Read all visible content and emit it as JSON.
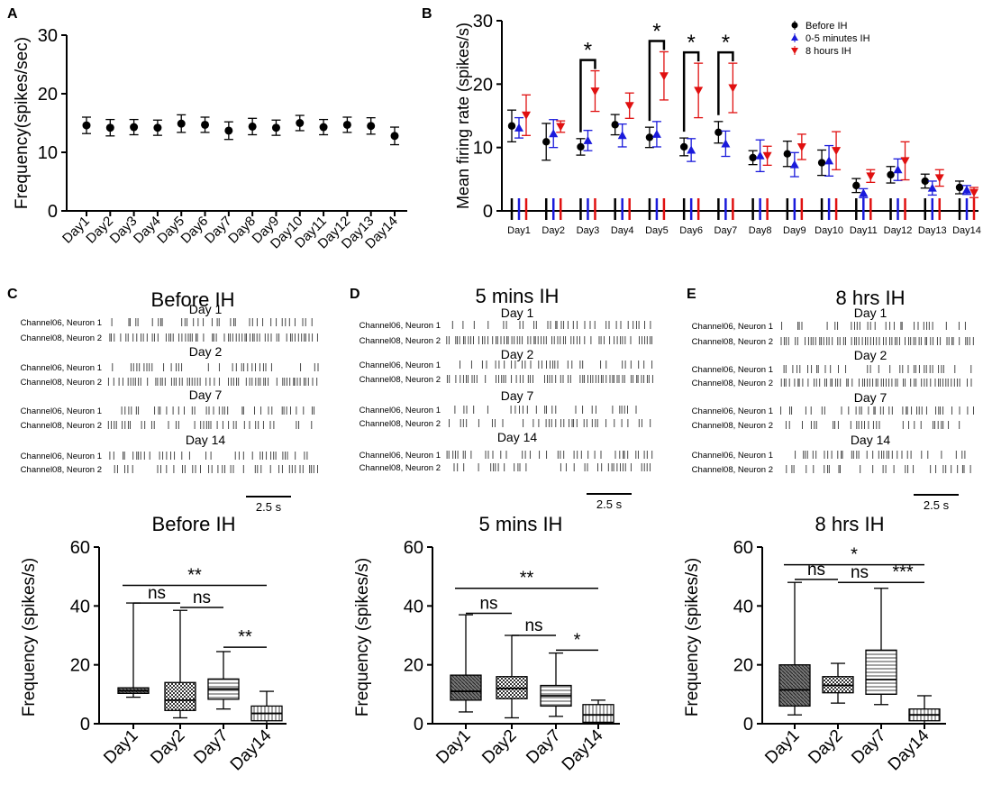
{
  "panels": {
    "A": {
      "label": "A",
      "chart_data": {
        "type": "scatter",
        "title": "",
        "xlabel": "",
        "ylabel": "Frequency(spikes/sec)",
        "ylim": [
          0,
          30
        ],
        "yticks": [
          0,
          10,
          20,
          30
        ],
        "categories": [
          "Day1",
          "Day2",
          "Day3",
          "Day4",
          "Day5",
          "Day6",
          "Day7",
          "Day8",
          "Day9",
          "Day10",
          "Day11",
          "Day12",
          "Day13",
          "Day14"
        ],
        "values": [
          14.6,
          14.2,
          14.3,
          14.2,
          14.9,
          14.7,
          13.7,
          14.4,
          14.2,
          15.0,
          14.3,
          14.7,
          14.5,
          12.8
        ],
        "errors": [
          1.4,
          1.4,
          1.3,
          1.3,
          1.5,
          1.3,
          1.5,
          1.4,
          1.3,
          1.3,
          1.3,
          1.3,
          1.4,
          1.5
        ]
      }
    },
    "B": {
      "label": "B",
      "chart_data": {
        "type": "scatter",
        "title": "",
        "xlabel": "",
        "ylabel": "Mean firing rate (spikes/s)",
        "ylim": [
          0,
          30
        ],
        "yticks": [
          0,
          10,
          20,
          30
        ],
        "categories": [
          "Day1",
          "Day2",
          "Day3",
          "Day4",
          "Day5",
          "Day6",
          "Day7",
          "Day8",
          "Day9",
          "Day10",
          "Day11",
          "Day12",
          "Day13",
          "Day14"
        ],
        "legend": [
          "Before IH",
          "0-5 minutes IH",
          "8 hours IH"
        ],
        "series": [
          {
            "name": "Before IH",
            "color": "#000000",
            "marker": "circle",
            "values": [
              13.4,
              10.9,
              10.1,
              13.6,
              11.6,
              10.1,
              12.4,
              8.4,
              9.0,
              7.6,
              4.0,
              5.7,
              4.7,
              3.7
            ],
            "errors": [
              2.5,
              2.9,
              1.3,
              1.6,
              1.6,
              1.4,
              1.7,
              1.1,
              2.0,
              2.0,
              1.1,
              1.3,
              1.1,
              1.0
            ]
          },
          {
            "name": "0-5 minutes IH",
            "color": "#1a1adb",
            "marker": "triangle-up",
            "values": [
              13.1,
              12.2,
              11.1,
              11.9,
              12.1,
              9.6,
              10.6,
              8.7,
              7.3,
              7.9,
              2.8,
              6.5,
              3.6,
              3.3
            ],
            "errors": [
              1.6,
              2.2,
              1.6,
              1.8,
              2.0,
              1.8,
              2.0,
              2.5,
              1.9,
              2.4,
              0.7,
              1.7,
              1.1,
              0.7
            ]
          },
          {
            "name": "8 hours IH",
            "color": "#e01010",
            "marker": "triangle-down",
            "values": [
              15.1,
              13.3,
              18.9,
              16.6,
              21.3,
              19.0,
              19.4,
              8.7,
              10.1,
              9.5,
              5.5,
              7.9,
              5.2,
              2.9
            ],
            "errors": [
              3.2,
              0.9,
              3.2,
              2.0,
              3.8,
              4.3,
              3.9,
              1.5,
              2.0,
              3.0,
              1.0,
              3.0,
              1.3,
              0.8
            ]
          }
        ],
        "annotations": [
          {
            "text": "*",
            "day": "Day3"
          },
          {
            "text": "*",
            "day": "Day5"
          },
          {
            "text": "*",
            "day": "Day6"
          },
          {
            "text": "*",
            "day": "Day7"
          }
        ]
      }
    },
    "rasters": [
      {
        "label": "C",
        "title": "Before IH",
        "scalebar": "2.5 s",
        "groups": [
          {
            "day": "Day 1",
            "rows": [
              "Channel06, Neuron 1",
              "Channel08, Neuron 2"
            ]
          },
          {
            "day": "Day 2",
            "rows": [
              "Channel06, Neuron 1",
              "Channel08, Neuron 2"
            ]
          },
          {
            "day": "Day 7",
            "rows": [
              "Channel06, Neuron 1",
              "Channel08, Neuron 2"
            ]
          },
          {
            "day": "Day 14",
            "rows": [
              "Channel06, Neuron 1",
              "Channel08, Neuron 2"
            ]
          }
        ]
      },
      {
        "label": "D",
        "title": "5 mins IH",
        "scalebar": "2.5 s",
        "groups": [
          {
            "day": "Day 1",
            "rows": [
              "Channel06, Neuron 1",
              "Channel08, Neuron 2"
            ]
          },
          {
            "day": "Day 2",
            "rows": [
              "Channel06, Neuron 1",
              "Channel08, Neuron 2"
            ]
          },
          {
            "day": "Day 7",
            "rows": [
              "Channel06, Neuron 1",
              "Channel08, Neuron 2"
            ]
          },
          {
            "day": "Day 14",
            "rows": [
              "Channel06, Neuron 1",
              "Channel08, Neuron 2"
            ]
          }
        ]
      },
      {
        "label": "E",
        "title": "8 hrs IH",
        "scalebar": "2.5 s",
        "groups": [
          {
            "day": "Day 1",
            "rows": [
              "Channel06, Neuron 1",
              "Channel08, Neuron 2"
            ]
          },
          {
            "day": "Day 2",
            "rows": [
              "Channel06, Neuron 1",
              "Channel08, Neuron 2"
            ]
          },
          {
            "day": "Day 7",
            "rows": [
              "Channel06, Neuron 1",
              "Channel08, Neuron 2"
            ]
          },
          {
            "day": "Day 14",
            "rows": [
              "Channel06, Neuron 1",
              "Channel08, Neuron 2"
            ]
          }
        ]
      }
    ],
    "boxplots": [
      {
        "title": "Before IH",
        "chart_data": {
          "type": "box",
          "ylabel": "Frequency (spikes/s)",
          "ylim": [
            0,
            60
          ],
          "yticks": [
            0,
            20,
            40,
            60
          ],
          "categories": [
            "Day1",
            "Day2",
            "Day7",
            "Day14"
          ],
          "boxes": [
            {
              "min": 9,
              "q1": 10.3,
              "median": 11.2,
              "q3": 12.2,
              "max": 41
            },
            {
              "min": 2,
              "q1": 4.5,
              "median": 8,
              "q3": 14,
              "max": 38.5
            },
            {
              "min": 5,
              "q1": 8.3,
              "median": 11.8,
              "q3": 15.2,
              "max": 24.5
            },
            {
              "min": 0,
              "q1": 1,
              "median": 3.5,
              "q3": 6,
              "max": 11
            }
          ],
          "significance": [
            {
              "text": "**",
              "from": "Day1",
              "to": "Day14",
              "y": 47
            },
            {
              "text": "ns",
              "from": "Day1",
              "to": "Day2",
              "y": 41
            },
            {
              "text": "ns",
              "from": "Day2",
              "to": "Day7",
              "y": 39.5
            },
            {
              "text": "**",
              "from": "Day7",
              "to": "Day14",
              "y": 26
            }
          ]
        }
      },
      {
        "title": "5 mins IH",
        "chart_data": {
          "type": "box",
          "ylabel": "Frequency (spikes/s)",
          "ylim": [
            0,
            60
          ],
          "yticks": [
            0,
            20,
            40,
            60
          ],
          "categories": [
            "Day1",
            "Day2",
            "Day7",
            "Day14"
          ],
          "boxes": [
            {
              "min": 4,
              "q1": 8,
              "median": 11,
              "q3": 16.5,
              "max": 37
            },
            {
              "min": 2,
              "q1": 8.5,
              "median": 12,
              "q3": 16,
              "max": 30
            },
            {
              "min": 2.5,
              "q1": 6,
              "median": 9.5,
              "q3": 13,
              "max": 24
            },
            {
              "min": 0,
              "q1": 0.5,
              "median": 3,
              "q3": 6.5,
              "max": 8
            }
          ],
          "significance": [
            {
              "text": "**",
              "from": "Day1",
              "to": "Day14",
              "y": 46
            },
            {
              "text": "ns",
              "from": "Day1",
              "to": "Day2",
              "y": 37.5
            },
            {
              "text": "ns",
              "from": "Day2",
              "to": "Day7",
              "y": 30
            },
            {
              "text": "*",
              "from": "Day7",
              "to": "Day14",
              "y": 25
            }
          ]
        }
      },
      {
        "title": "8 hrs IH",
        "chart_data": {
          "type": "box",
          "ylabel": "Frequency (spikes/s)",
          "ylim": [
            0,
            60
          ],
          "yticks": [
            0,
            20,
            40,
            60
          ],
          "categories": [
            "Day1",
            "Day2",
            "Day7",
            "Day14"
          ],
          "boxes": [
            {
              "min": 3,
              "q1": 6,
              "median": 11.5,
              "q3": 20,
              "max": 48
            },
            {
              "min": 7,
              "q1": 10.5,
              "median": 13,
              "q3": 16,
              "max": 20.5
            },
            {
              "min": 6.5,
              "q1": 10,
              "median": 15,
              "q3": 25,
              "max": 46
            },
            {
              "min": 0,
              "q1": 1,
              "median": 3,
              "q3": 5,
              "max": 9.5
            }
          ],
          "significance": [
            {
              "text": "*",
              "from": "Day1",
              "to": "Day14",
              "y": 54
            },
            {
              "text": "ns",
              "from": "Day1",
              "to": "Day2",
              "y": 49
            },
            {
              "text": "ns",
              "from": "Day2",
              "to": "Day7",
              "y": 48
            },
            {
              "text": "***",
              "from": "Day7",
              "to": "Day14",
              "y": 48
            }
          ]
        }
      }
    ]
  }
}
